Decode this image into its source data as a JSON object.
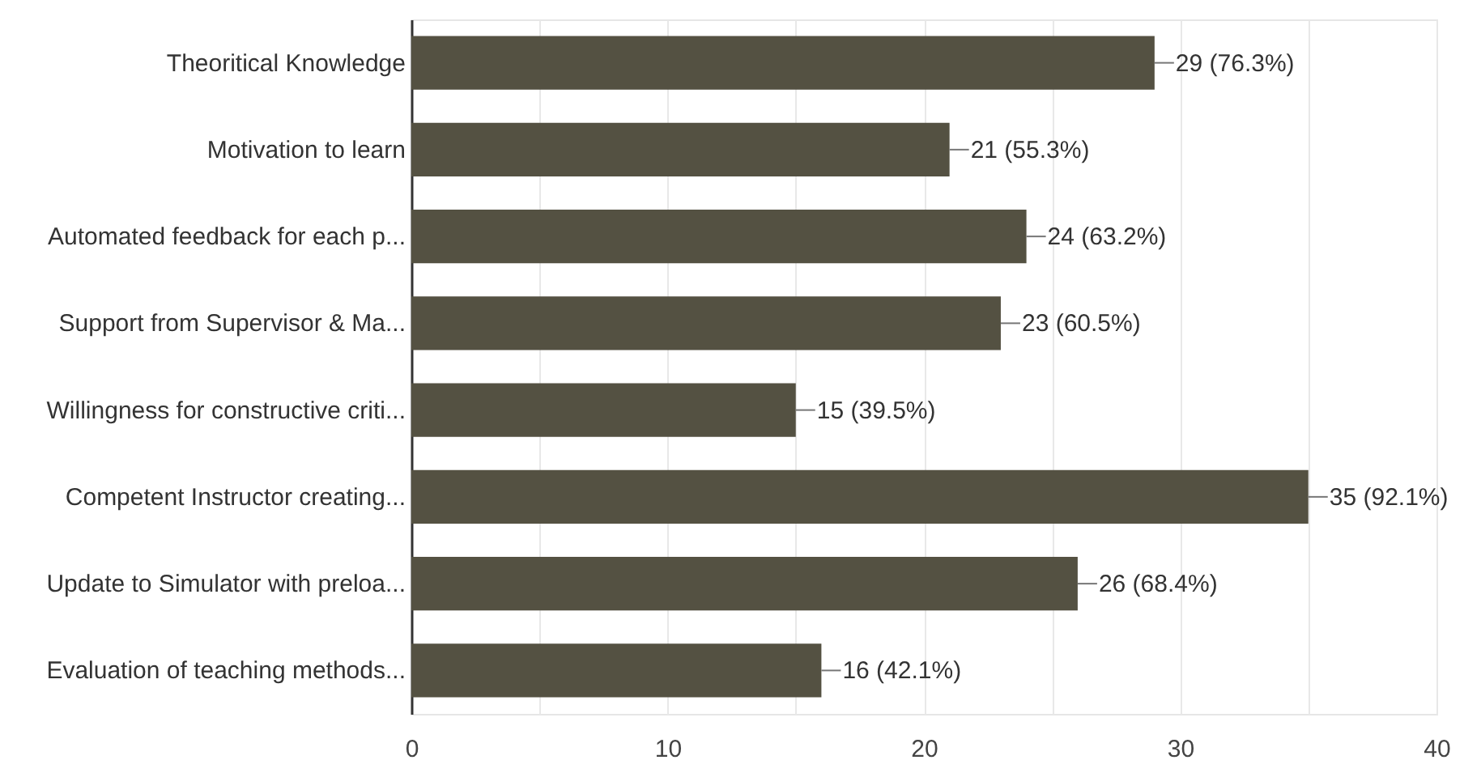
{
  "chart_data": {
    "type": "bar",
    "orientation": "horizontal",
    "categories": [
      "Theoritical Knowledge",
      "Motivation to learn",
      "Automated feedback for each p...",
      "Support from Supervisor & Ma...",
      "Willingness for constructive criti...",
      "Competent Instructor creating...",
      "Update to Simulator with preloa...",
      "Evaluation of teaching methods..."
    ],
    "values": [
      29,
      21,
      24,
      23,
      15,
      35,
      26,
      16
    ],
    "value_labels": [
      "29 (76.3%)",
      "21 (55.3%)",
      "24 (63.2%)",
      "23 (60.5%)",
      "15 (39.5%)",
      "35 (92.1%)",
      "26 (68.4%)",
      "16 (42.1%)"
    ],
    "color": "#545142",
    "xlim": [
      0,
      40
    ],
    "xticks": [
      0,
      {
        "value": 5,
        "label": null
      },
      10,
      {
        "value": 15,
        "label": null
      },
      20,
      {
        "value": 25,
        "label": null
      },
      30,
      {
        "value": 35,
        "label": null
      },
      40
    ],
    "grid": "x"
  }
}
